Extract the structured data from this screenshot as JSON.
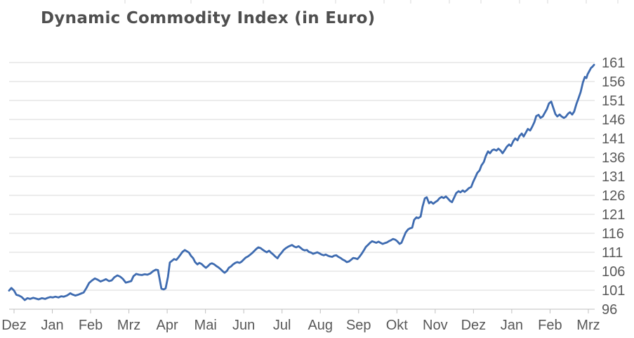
{
  "title": "Dynamic Commodity Index (in Euro)",
  "colors": {
    "line": "#3E6BB0",
    "gridline": "#D9D9D9",
    "axis_line": "#BFBFBF",
    "axis_text": "#595959",
    "title_text": "#4F4F4F",
    "background": "#FFFFFF"
  },
  "chart_data": {
    "type": "line",
    "title": "Dynamic Commodity Index (in Euro)",
    "legend": "none",
    "grid": "horizontal",
    "x_axis": {
      "position": "bottom",
      "unit": "month",
      "labels": [
        "Dez",
        "Jan",
        "Feb",
        "Mrz",
        "Apr",
        "Mai",
        "Jun",
        "Jul",
        "Aug",
        "Sep",
        "Okt",
        "Nov",
        "Dez",
        "Jan",
        "Feb",
        "Mrz"
      ]
    },
    "y_axis": {
      "position": "right",
      "range": [
        96,
        161
      ],
      "ticks": [
        96,
        101,
        106,
        111,
        116,
        121,
        126,
        131,
        136,
        141,
        146,
        151,
        156,
        161
      ]
    },
    "series": [
      {
        "name": "Dynamic Commodity Index (in Euro)",
        "color": "#3E6BB0",
        "x_unit_note": "x = months after first Dez tick",
        "points": [
          [
            -0.13,
            100.9
          ],
          [
            -0.07,
            101.6
          ],
          [
            0,
            100.9
          ],
          [
            0.06,
            99.8
          ],
          [
            0.13,
            99.6
          ],
          [
            0.2,
            99.2
          ],
          [
            0.28,
            98.4
          ],
          [
            0.35,
            98.9
          ],
          [
            0.42,
            98.7
          ],
          [
            0.5,
            99
          ],
          [
            0.57,
            98.8
          ],
          [
            0.64,
            98.6
          ],
          [
            0.73,
            98.9
          ],
          [
            0.81,
            98.7
          ],
          [
            0.88,
            99
          ],
          [
            0.95,
            99.2
          ],
          [
            1.01,
            99.1
          ],
          [
            1.08,
            99.3
          ],
          [
            1.16,
            99.1
          ],
          [
            1.23,
            99.4
          ],
          [
            1.3,
            99.3
          ],
          [
            1.38,
            99.6
          ],
          [
            1.47,
            100.2
          ],
          [
            1.52,
            99.9
          ],
          [
            1.6,
            99.6
          ],
          [
            1.67,
            99.8
          ],
          [
            1.74,
            100.1
          ],
          [
            1.82,
            100.4
          ],
          [
            1.89,
            101.6
          ],
          [
            1.96,
            102.9
          ],
          [
            2.04,
            103.6
          ],
          [
            2.11,
            104.1
          ],
          [
            2.18,
            103.8
          ],
          [
            2.26,
            103.3
          ],
          [
            2.33,
            103.6
          ],
          [
            2.4,
            103.9
          ],
          [
            2.48,
            103.4
          ],
          [
            2.55,
            103.6
          ],
          [
            2.62,
            104.4
          ],
          [
            2.7,
            104.9
          ],
          [
            2.77,
            104.6
          ],
          [
            2.84,
            104
          ],
          [
            2.92,
            103
          ],
          [
            2.99,
            103.2
          ],
          [
            3.06,
            103.4
          ],
          [
            3.12,
            104.7
          ],
          [
            3.19,
            105.3
          ],
          [
            3.26,
            105.1
          ],
          [
            3.34,
            105
          ],
          [
            3.41,
            105.2
          ],
          [
            3.48,
            105.1
          ],
          [
            3.56,
            105.4
          ],
          [
            3.63,
            106
          ],
          [
            3.7,
            106.4
          ],
          [
            3.76,
            106.3
          ],
          [
            3.81,
            103.5
          ],
          [
            3.85,
            101.4
          ],
          [
            3.91,
            101.2
          ],
          [
            3.96,
            101.5
          ],
          [
            4.02,
            104.5
          ],
          [
            4.07,
            108.3
          ],
          [
            4.13,
            108.8
          ],
          [
            4.18,
            109.2
          ],
          [
            4.24,
            109
          ],
          [
            4.29,
            109.6
          ],
          [
            4.35,
            110.4
          ],
          [
            4.4,
            111.1
          ],
          [
            4.46,
            111.6
          ],
          [
            4.51,
            111.3
          ],
          [
            4.57,
            110.9
          ],
          [
            4.62,
            110.1
          ],
          [
            4.68,
            109.4
          ],
          [
            4.73,
            108.4
          ],
          [
            4.79,
            107.8
          ],
          [
            4.84,
            108.2
          ],
          [
            4.9,
            107.9
          ],
          [
            4.95,
            107.4
          ],
          [
            5.01,
            106.9
          ],
          [
            5.06,
            107.3
          ],
          [
            5.12,
            107.9
          ],
          [
            5.17,
            108.1
          ],
          [
            5.23,
            107.8
          ],
          [
            5.28,
            107.4
          ],
          [
            5.34,
            107
          ],
          [
            5.39,
            106.6
          ],
          [
            5.45,
            106
          ],
          [
            5.5,
            105.6
          ],
          [
            5.56,
            106.1
          ],
          [
            5.61,
            106.9
          ],
          [
            5.67,
            107.3
          ],
          [
            5.72,
            107.8
          ],
          [
            5.78,
            108.2
          ],
          [
            5.83,
            108.4
          ],
          [
            5.89,
            108.2
          ],
          [
            5.94,
            108.5
          ],
          [
            6,
            109.1
          ],
          [
            6.05,
            109.6
          ],
          [
            6.11,
            109.9
          ],
          [
            6.16,
            110.3
          ],
          [
            6.22,
            110.8
          ],
          [
            6.27,
            111.3
          ],
          [
            6.33,
            111.9
          ],
          [
            6.38,
            112.3
          ],
          [
            6.44,
            112.1
          ],
          [
            6.49,
            111.7
          ],
          [
            6.55,
            111.3
          ],
          [
            6.6,
            111
          ],
          [
            6.66,
            111.4
          ],
          [
            6.71,
            110.9
          ],
          [
            6.77,
            110.4
          ],
          [
            6.82,
            109.9
          ],
          [
            6.88,
            109.4
          ],
          [
            6.93,
            110.2
          ],
          [
            6.99,
            110.9
          ],
          [
            7.04,
            111.6
          ],
          [
            7.1,
            112.1
          ],
          [
            7.15,
            112.4
          ],
          [
            7.21,
            112.7
          ],
          [
            7.26,
            112.9
          ],
          [
            7.32,
            112.5
          ],
          [
            7.37,
            112.3
          ],
          [
            7.43,
            112.6
          ],
          [
            7.48,
            112.2
          ],
          [
            7.54,
            111.7
          ],
          [
            7.59,
            111.5
          ],
          [
            7.65,
            111.6
          ],
          [
            7.7,
            111.1
          ],
          [
            7.76,
            110.9
          ],
          [
            7.81,
            110.6
          ],
          [
            7.87,
            110.8
          ],
          [
            7.92,
            111
          ],
          [
            7.98,
            110.7
          ],
          [
            8.03,
            110.4
          ],
          [
            8.09,
            110.2
          ],
          [
            8.14,
            110.4
          ],
          [
            8.2,
            110.1
          ],
          [
            8.25,
            109.9
          ],
          [
            8.31,
            109.8
          ],
          [
            8.36,
            110.1
          ],
          [
            8.42,
            110.2
          ],
          [
            8.47,
            109.8
          ],
          [
            8.53,
            109.5
          ],
          [
            8.58,
            109.1
          ],
          [
            8.64,
            108.8
          ],
          [
            8.69,
            108.4
          ],
          [
            8.75,
            108.6
          ],
          [
            8.8,
            109
          ],
          [
            8.86,
            109.5
          ],
          [
            8.91,
            109.4
          ],
          [
            8.97,
            109.2
          ],
          [
            9.02,
            109.8
          ],
          [
            9.08,
            110.6
          ],
          [
            9.13,
            111.4
          ],
          [
            9.19,
            112.4
          ],
          [
            9.24,
            112.9
          ],
          [
            9.3,
            113.5
          ],
          [
            9.35,
            113.9
          ],
          [
            9.41,
            113.7
          ],
          [
            9.46,
            113.5
          ],
          [
            9.52,
            113.8
          ],
          [
            9.57,
            113.5
          ],
          [
            9.63,
            113.2
          ],
          [
            9.68,
            113.4
          ],
          [
            9.74,
            113.6
          ],
          [
            9.79,
            113.9
          ],
          [
            9.85,
            114.2
          ],
          [
            9.9,
            114.5
          ],
          [
            9.96,
            114.3
          ],
          [
            10.01,
            113.9
          ],
          [
            10.07,
            113.2
          ],
          [
            10.12,
            113.5
          ],
          [
            10.18,
            115
          ],
          [
            10.23,
            116.2
          ],
          [
            10.29,
            117
          ],
          [
            10.34,
            117.3
          ],
          [
            10.4,
            117.5
          ],
          [
            10.45,
            119.5
          ],
          [
            10.51,
            120.2
          ],
          [
            10.56,
            120
          ],
          [
            10.62,
            120.4
          ],
          [
            10.67,
            123
          ],
          [
            10.73,
            125.2
          ],
          [
            10.78,
            125.5
          ],
          [
            10.84,
            123.9
          ],
          [
            10.89,
            124.3
          ],
          [
            10.95,
            123.8
          ],
          [
            11,
            124.2
          ],
          [
            11.06,
            124.6
          ],
          [
            11.11,
            125.2
          ],
          [
            11.17,
            125.6
          ],
          [
            11.22,
            125.3
          ],
          [
            11.28,
            125.7
          ],
          [
            11.33,
            125.2
          ],
          [
            11.39,
            124.5
          ],
          [
            11.44,
            124.2
          ],
          [
            11.5,
            125.5
          ],
          [
            11.55,
            126.6
          ],
          [
            11.61,
            127.1
          ],
          [
            11.66,
            126.8
          ],
          [
            11.72,
            127.3
          ],
          [
            11.77,
            126.9
          ],
          [
            11.83,
            127.4
          ],
          [
            11.88,
            127.9
          ],
          [
            11.94,
            128.2
          ],
          [
            11.99,
            129.5
          ],
          [
            12.05,
            130.8
          ],
          [
            12.1,
            131.9
          ],
          [
            12.16,
            132.6
          ],
          [
            12.21,
            133.9
          ],
          [
            12.27,
            134.8
          ],
          [
            12.32,
            136.3
          ],
          [
            12.38,
            137.6
          ],
          [
            12.43,
            137.1
          ],
          [
            12.49,
            137.9
          ],
          [
            12.54,
            138.1
          ],
          [
            12.6,
            137.8
          ],
          [
            12.65,
            138.3
          ],
          [
            12.71,
            137.8
          ],
          [
            12.76,
            137.1
          ],
          [
            12.82,
            138
          ],
          [
            12.87,
            138.8
          ],
          [
            12.93,
            139.4
          ],
          [
            12.98,
            139
          ],
          [
            13.04,
            140.3
          ],
          [
            13.09,
            141
          ],
          [
            13.15,
            140.5
          ],
          [
            13.2,
            141.6
          ],
          [
            13.26,
            142.3
          ],
          [
            13.31,
            141.5
          ],
          [
            13.37,
            142.6
          ],
          [
            13.42,
            143.5
          ],
          [
            13.48,
            143.1
          ],
          [
            13.53,
            144
          ],
          [
            13.59,
            145.3
          ],
          [
            13.64,
            146.9
          ],
          [
            13.7,
            147.2
          ],
          [
            13.75,
            146.4
          ],
          [
            13.81,
            146.8
          ],
          [
            13.86,
            147.7
          ],
          [
            13.92,
            148.8
          ],
          [
            13.97,
            150.2
          ],
          [
            14.03,
            150.7
          ],
          [
            14.08,
            149.2
          ],
          [
            14.14,
            147.4
          ],
          [
            14.19,
            146.8
          ],
          [
            14.25,
            147.3
          ],
          [
            14.3,
            146.8
          ],
          [
            14.36,
            146.4
          ],
          [
            14.41,
            146.7
          ],
          [
            14.47,
            147.5
          ],
          [
            14.52,
            147.9
          ],
          [
            14.58,
            147.3
          ],
          [
            14.63,
            148.1
          ],
          [
            14.69,
            150.1
          ],
          [
            14.74,
            151.5
          ],
          [
            14.8,
            153.2
          ],
          [
            14.86,
            155.8
          ],
          [
            14.91,
            157.2
          ],
          [
            14.95,
            156.9
          ],
          [
            14.98,
            157.9
          ],
          [
            15.04,
            159
          ],
          [
            15.07,
            159.6
          ],
          [
            15.11,
            159.9
          ],
          [
            15.15,
            160.4
          ]
        ]
      }
    ]
  }
}
